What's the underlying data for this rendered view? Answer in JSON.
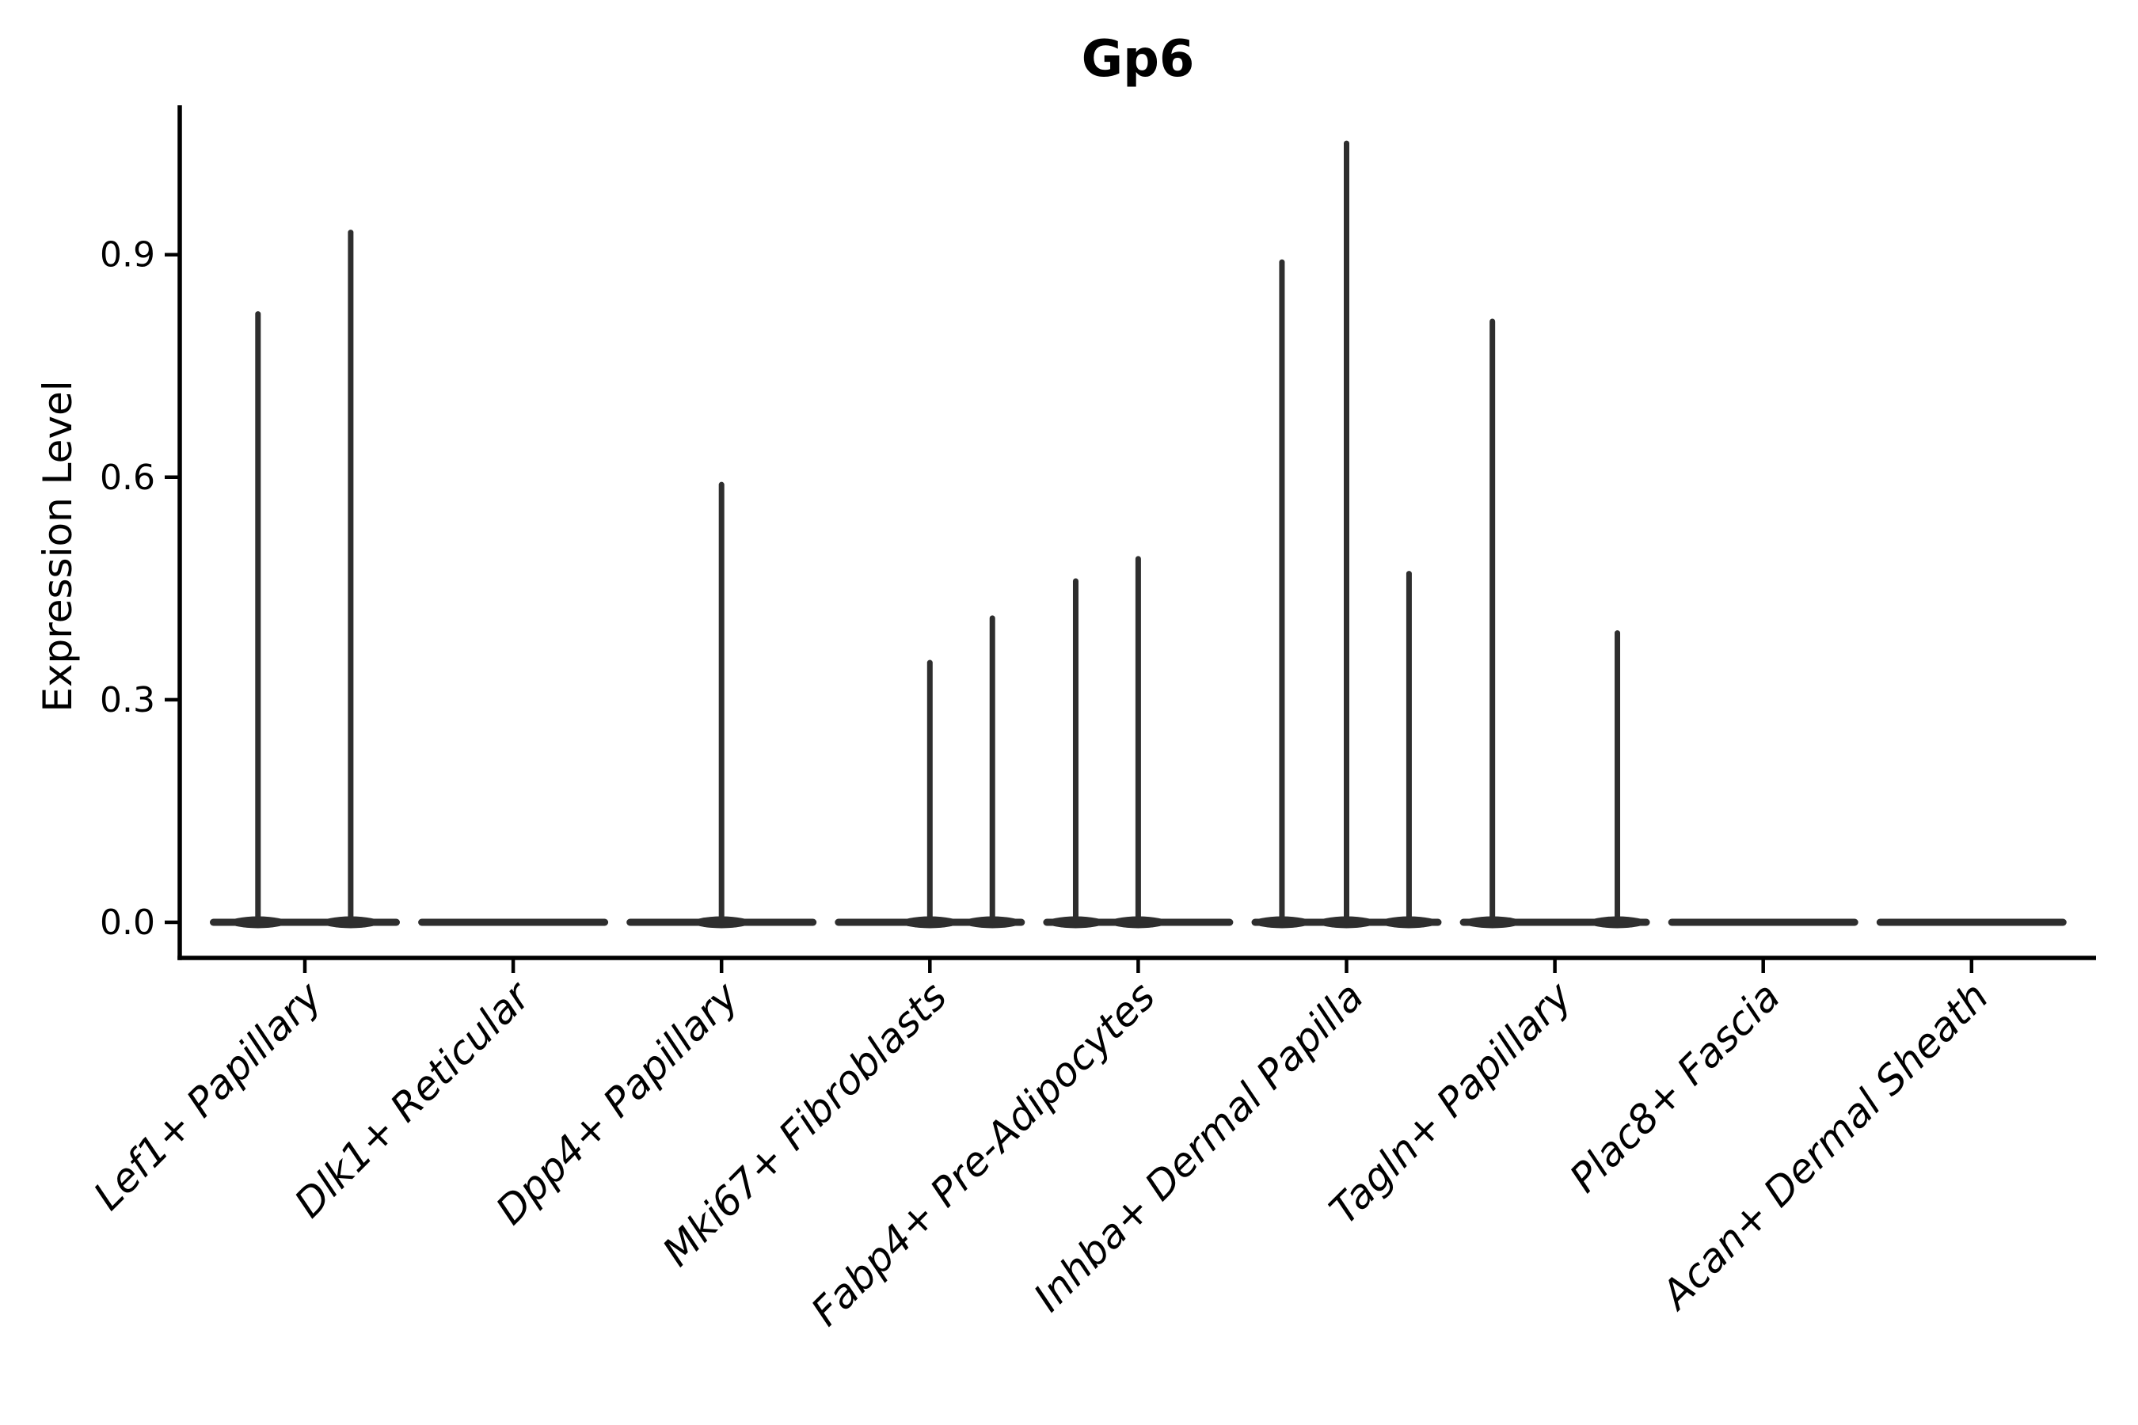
{
  "figure": {
    "background": "#ffffff"
  },
  "chart_data": {
    "type": "violin",
    "title": "Gp6",
    "ylabel": "Expression Level",
    "xlabel": "",
    "grid": false,
    "legend": "none",
    "ylim": [
      -0.048,
      1.101
    ],
    "ytick_values": [
      0.0,
      0.3,
      0.6,
      0.9
    ],
    "ytick_labels": [
      "0.0",
      "0.3",
      "0.6",
      "0.9"
    ],
    "categories": [
      "Lef1+ Papillary",
      "Dlk1+ Reticular",
      "Dpp4+ Papillary",
      "Mki67+ Fibroblasts",
      "Fabp4+ Pre-Adipocytes",
      "Inhba+ Dermal Papilla",
      "Tagln+ Papillary",
      "Plac8+ Fascia",
      "Acan+ Dermal Sheath"
    ],
    "series": [
      {
        "category": "Lef1+ Papillary",
        "baseline_value": 0.0,
        "spikes": [
          {
            "offset": -0.225,
            "value": 0.82
          },
          {
            "offset": 0.22,
            "value": 0.93
          }
        ]
      },
      {
        "category": "Dlk1+ Reticular",
        "baseline_value": 0.0,
        "spikes": []
      },
      {
        "category": "Dpp4+ Papillary",
        "baseline_value": 0.0,
        "spikes": [
          {
            "offset": 0.0,
            "value": 0.59
          }
        ]
      },
      {
        "category": "Mki67+ Fibroblasts",
        "baseline_value": 0.0,
        "spikes": [
          {
            "offset": 0.0,
            "value": 0.35
          },
          {
            "offset": 0.3,
            "value": 0.41
          }
        ]
      },
      {
        "category": "Fabp4+ Pre-Adipocytes",
        "baseline_value": 0.0,
        "spikes": [
          {
            "offset": -0.3,
            "value": 0.46
          },
          {
            "offset": 0.0,
            "value": 0.49
          }
        ]
      },
      {
        "category": "Inhba+ Dermal Papilla",
        "baseline_value": 0.0,
        "spikes": [
          {
            "offset": -0.31,
            "value": 0.89
          },
          {
            "offset": 0.0,
            "value": 1.05
          },
          {
            "offset": 0.3,
            "value": 0.47
          }
        ]
      },
      {
        "category": "Tagln+ Papillary",
        "baseline_value": 0.0,
        "spikes": [
          {
            "offset": -0.3,
            "value": 0.81
          },
          {
            "offset": 0.3,
            "value": 0.39
          }
        ]
      },
      {
        "category": "Plac8+ Fascia",
        "baseline_value": 0.0,
        "spikes": []
      },
      {
        "category": "Acan+ Dermal Sheath",
        "baseline_value": 0.0,
        "spikes": []
      }
    ],
    "colors": {
      "violin": "#2e2e2e",
      "axis": "#000000",
      "text": "#000000",
      "background": "#ffffff"
    }
  }
}
